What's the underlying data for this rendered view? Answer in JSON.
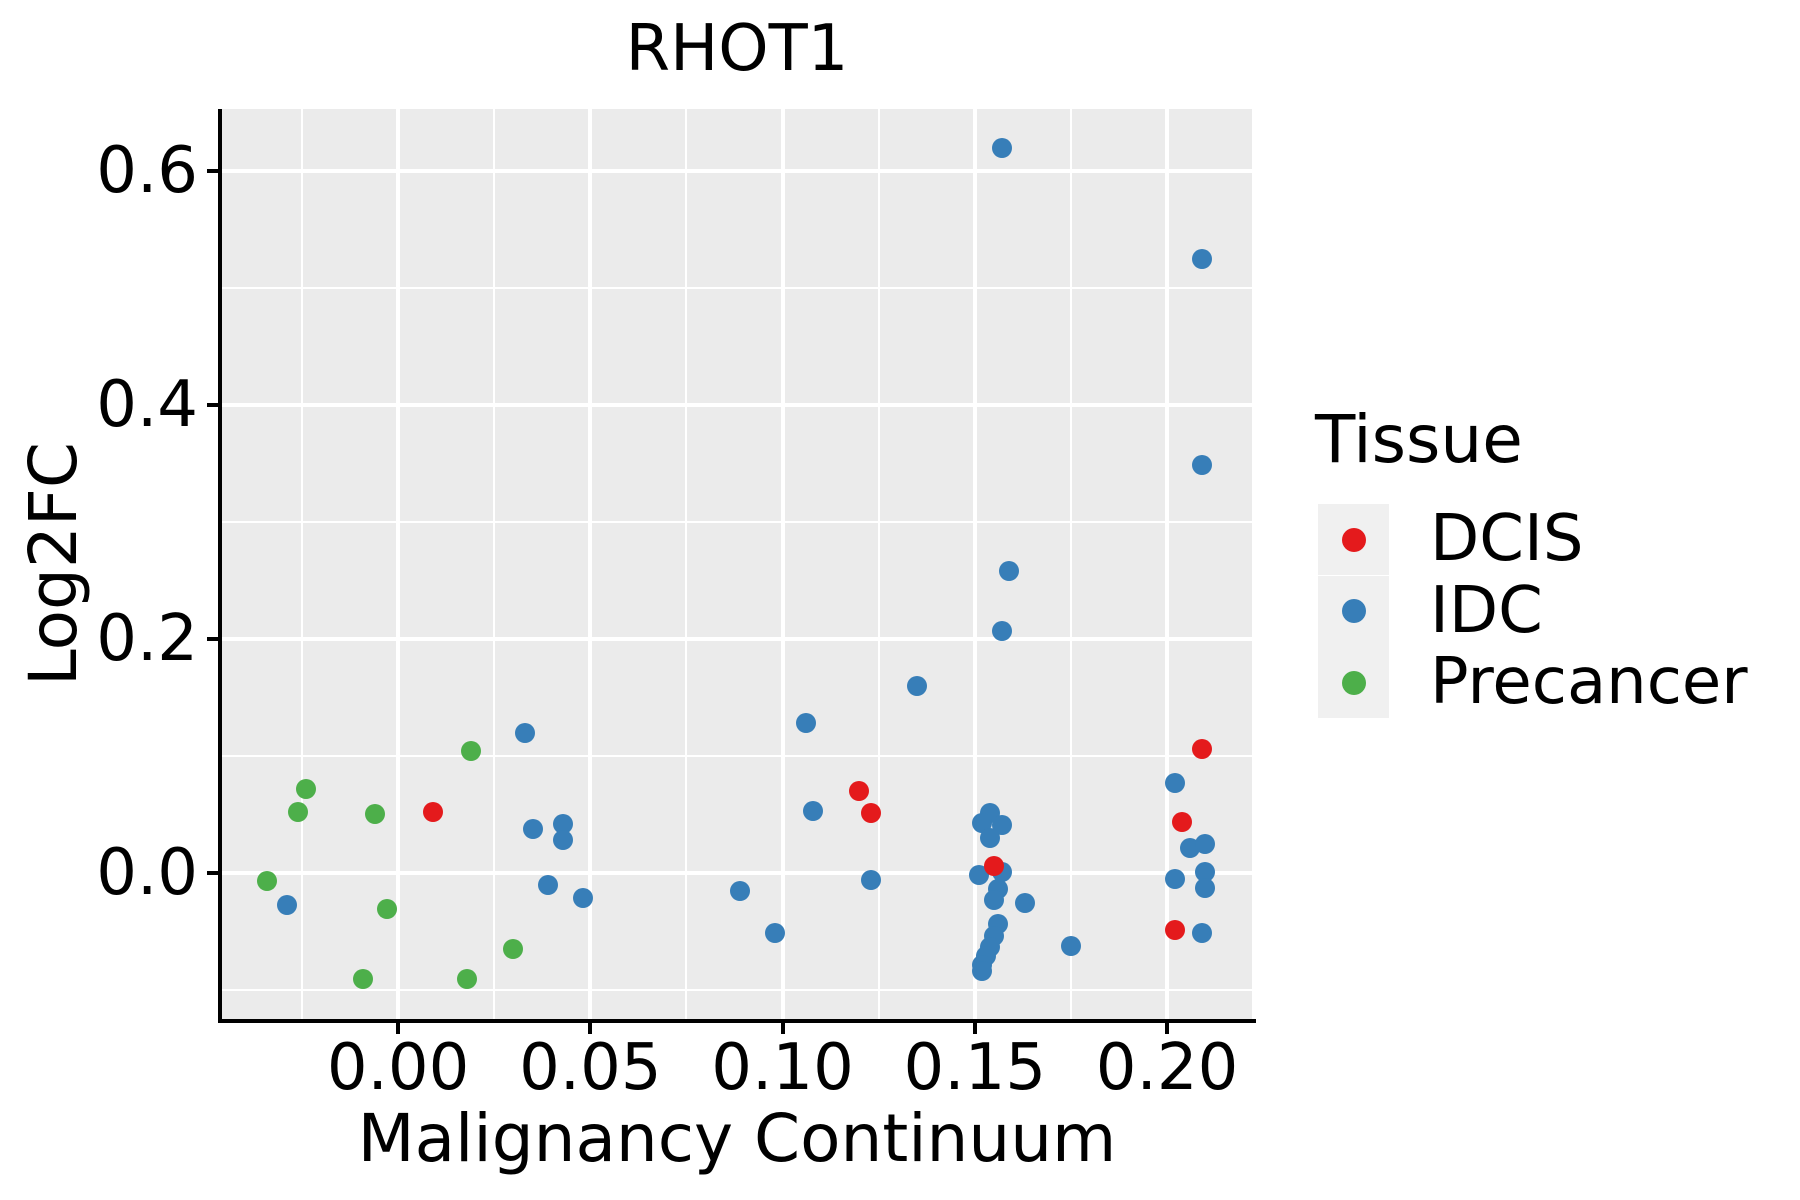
{
  "title": "RHOT1",
  "axes": {
    "x": {
      "label": "Malignancy Continuum",
      "ticks": [
        {
          "value": 0.0,
          "label": "0.00"
        },
        {
          "value": 0.05,
          "label": "0.05"
        },
        {
          "value": 0.1,
          "label": "0.10"
        },
        {
          "value": 0.15,
          "label": "0.15"
        },
        {
          "value": 0.2,
          "label": "0.20"
        }
      ],
      "minor_ticks": [
        -0.025,
        0.025,
        0.075,
        0.125,
        0.175
      ]
    },
    "y": {
      "label": "Log2FC",
      "ticks": [
        {
          "value": 0.0,
          "label": "0.0"
        },
        {
          "value": 0.2,
          "label": "0.2"
        },
        {
          "value": 0.4,
          "label": "0.4"
        },
        {
          "value": 0.6,
          "label": "0.6"
        }
      ],
      "minor_ticks": [
        -0.1,
        0.1,
        0.3,
        0.5
      ]
    }
  },
  "legend": {
    "title": "Tissue",
    "entries": [
      {
        "label": "DCIS",
        "color": "#E41A1C"
      },
      {
        "label": "IDC",
        "color": "#377EB8"
      },
      {
        "label": "Precancer",
        "color": "#4DAF4A"
      }
    ]
  },
  "colors": {
    "panel_background": "#EBEBEB",
    "gridline": "#FFFFFF",
    "legend_key_background": "#F0F0F0",
    "axis": "#000000",
    "dcis": "#E41A1C",
    "idc": "#377EB8",
    "precancer": "#4DAF4A"
  },
  "chart_data": {
    "type": "scatter",
    "title": "RHOT1",
    "xlabel": "Malignancy Continuum",
    "ylabel": "Log2FC",
    "legend_title": "Tissue",
    "legend_position": "right",
    "grid": "on",
    "xlim": [
      -0.0458,
      0.2221
    ],
    "ylim": [
      -0.1248,
      0.653
    ],
    "series": [
      {
        "name": "IDC",
        "color": "#377EB8",
        "points": [
          [
            -0.029,
            -0.027
          ],
          [
            0.033,
            0.12
          ],
          [
            0.035,
            0.038
          ],
          [
            0.043,
            0.042
          ],
          [
            0.043,
            0.028
          ],
          [
            0.039,
            -0.01
          ],
          [
            0.048,
            -0.021
          ],
          [
            0.089,
            -0.015
          ],
          [
            0.098,
            -0.051
          ],
          [
            0.106,
            0.128
          ],
          [
            0.108,
            0.053
          ],
          [
            0.123,
            -0.006
          ],
          [
            0.135,
            0.16
          ],
          [
            0.157,
            0.62
          ],
          [
            0.159,
            0.258
          ],
          [
            0.157,
            0.207
          ],
          [
            0.154,
            0.051
          ],
          [
            0.152,
            0.043
          ],
          [
            0.157,
            0.041
          ],
          [
            0.154,
            0.03
          ],
          [
            0.151,
            -0.002
          ],
          [
            0.157,
            0.001
          ],
          [
            0.156,
            -0.014
          ],
          [
            0.155,
            -0.023
          ],
          [
            0.163,
            -0.026
          ],
          [
            0.156,
            -0.044
          ],
          [
            0.155,
            -0.054
          ],
          [
            0.154,
            -0.063
          ],
          [
            0.153,
            -0.071
          ],
          [
            0.152,
            -0.079
          ],
          [
            0.152,
            -0.084
          ],
          [
            0.175,
            -0.062
          ],
          [
            0.209,
            0.525
          ],
          [
            0.209,
            0.349
          ],
          [
            0.202,
            0.077
          ],
          [
            0.206,
            0.021
          ],
          [
            0.21,
            0.025
          ],
          [
            0.202,
            -0.005
          ],
          [
            0.21,
            0.001
          ],
          [
            0.21,
            -0.013
          ],
          [
            0.209,
            -0.051
          ]
        ]
      },
      {
        "name": "Precancer",
        "color": "#4DAF4A",
        "points": [
          [
            -0.034,
            -0.007
          ],
          [
            -0.026,
            0.052
          ],
          [
            -0.024,
            0.072
          ],
          [
            -0.009,
            -0.091
          ],
          [
            -0.006,
            0.05
          ],
          [
            -0.003,
            -0.031
          ],
          [
            0.018,
            -0.091
          ],
          [
            0.019,
            0.104
          ],
          [
            0.03,
            -0.065
          ]
        ]
      },
      {
        "name": "DCIS",
        "color": "#E41A1C",
        "points": [
          [
            0.009,
            0.052
          ],
          [
            0.12,
            0.07
          ],
          [
            0.123,
            0.051
          ],
          [
            0.155,
            0.006
          ],
          [
            0.209,
            0.106
          ],
          [
            0.204,
            0.044
          ],
          [
            0.202,
            -0.049
          ]
        ]
      }
    ]
  }
}
